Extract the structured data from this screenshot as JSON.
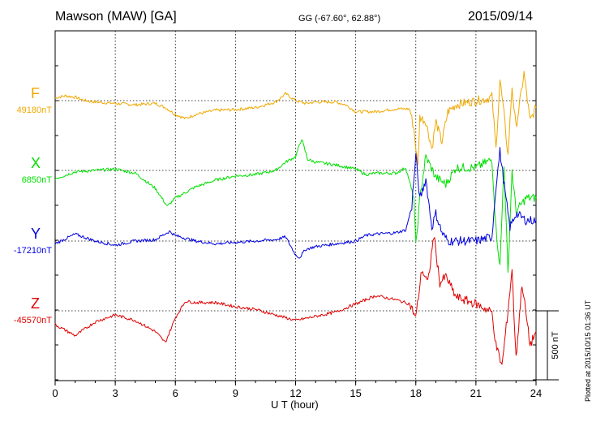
{
  "header": {
    "station": "Mawson (MAW)  [GA]",
    "coords": "GG (-67.60°,  62.88°)",
    "date": "2015/09/14"
  },
  "side_note": "Plotted at 2015/10/15 01:36 UT",
  "colors": {
    "F": "#f0a800",
    "X": "#00e000",
    "Y": "#0000e0",
    "Z": "#e00000",
    "axis": "#000000"
  },
  "chart_data": {
    "type": "line",
    "xlabel": "U T (hour)",
    "xlim": [
      0,
      24
    ],
    "xticks": [
      "0",
      "3",
      "6",
      "9",
      "12",
      "15",
      "18",
      "21",
      "24"
    ],
    "scale_bar": "500 nT",
    "scale_bar_value_nT": 500,
    "series": [
      {
        "name": "F",
        "baseline": "49180nT",
        "points": [
          [
            0,
            20
          ],
          [
            0.5,
            35
          ],
          [
            1,
            25
          ],
          [
            1.5,
            0
          ],
          [
            2,
            -10
          ],
          [
            3,
            -20
          ],
          [
            4,
            -30
          ],
          [
            5,
            -20
          ],
          [
            5.5,
            -50
          ],
          [
            6,
            -100
          ],
          [
            6.5,
            -130
          ],
          [
            7,
            -100
          ],
          [
            8,
            -70
          ],
          [
            9,
            -65
          ],
          [
            10,
            -50
          ],
          [
            11,
            -10
          ],
          [
            11.5,
            50
          ],
          [
            12,
            0
          ],
          [
            12.5,
            -20
          ],
          [
            13,
            -10
          ],
          [
            14,
            -10
          ],
          [
            14.5,
            -30
          ],
          [
            15,
            -80
          ],
          [
            16,
            -80
          ],
          [
            17,
            -60
          ],
          [
            17.7,
            -60
          ],
          [
            17.9,
            -200
          ],
          [
            18.1,
            -480
          ],
          [
            18.2,
            -120
          ],
          [
            18.5,
            -150
          ],
          [
            18.8,
            -350
          ],
          [
            19,
            -150
          ],
          [
            19.3,
            -300
          ],
          [
            19.6,
            -80
          ],
          [
            20,
            -30
          ],
          [
            21,
            0
          ],
          [
            21.5,
            10
          ],
          [
            21.8,
            30
          ],
          [
            22,
            -350
          ],
          [
            22.2,
            150
          ],
          [
            22.4,
            -100
          ],
          [
            22.6,
            -400
          ],
          [
            22.8,
            100
          ],
          [
            23,
            -200
          ],
          [
            23.4,
            200
          ],
          [
            23.7,
            -150
          ],
          [
            24,
            -50
          ]
        ]
      },
      {
        "name": "X",
        "baseline": "6850nT",
        "points": [
          [
            0,
            -60
          ],
          [
            1,
            -10
          ],
          [
            2,
            0
          ],
          [
            3,
            10
          ],
          [
            4,
            -20
          ],
          [
            5,
            -130
          ],
          [
            5.6,
            -260
          ],
          [
            6,
            -200
          ],
          [
            7,
            -120
          ],
          [
            8,
            -70
          ],
          [
            9,
            -40
          ],
          [
            10,
            -30
          ],
          [
            11,
            0
          ],
          [
            11.5,
            60
          ],
          [
            12,
            100
          ],
          [
            12.3,
            230
          ],
          [
            12.6,
            80
          ],
          [
            13,
            60
          ],
          [
            14,
            40
          ],
          [
            15,
            10
          ],
          [
            15.5,
            -30
          ],
          [
            16,
            -20
          ],
          [
            17,
            -20
          ],
          [
            17.5,
            20
          ],
          [
            17.9,
            -200
          ],
          [
            18,
            -550
          ],
          [
            18.2,
            -200
          ],
          [
            18.5,
            100
          ],
          [
            19,
            -50
          ],
          [
            19.5,
            -100
          ],
          [
            20,
            20
          ],
          [
            21,
            20
          ],
          [
            21.8,
            80
          ],
          [
            22,
            -420
          ],
          [
            22.2,
            -700
          ],
          [
            22.4,
            50
          ],
          [
            22.6,
            -750
          ],
          [
            22.8,
            0
          ],
          [
            23,
            -300
          ],
          [
            23.5,
            -200
          ],
          [
            24,
            -200
          ]
        ]
      },
      {
        "name": "Y",
        "baseline": "-17210nT",
        "points": [
          [
            0,
            -20
          ],
          [
            1,
            50
          ],
          [
            2,
            0
          ],
          [
            3,
            -30
          ],
          [
            4,
            0
          ],
          [
            5,
            10
          ],
          [
            5.7,
            70
          ],
          [
            6,
            40
          ],
          [
            7,
            0
          ],
          [
            8,
            -20
          ],
          [
            9,
            -10
          ],
          [
            10,
            0
          ],
          [
            11,
            10
          ],
          [
            11.5,
            30
          ],
          [
            12,
            -100
          ],
          [
            12.2,
            -120
          ],
          [
            12.5,
            -60
          ],
          [
            13,
            -40
          ],
          [
            14,
            -20
          ],
          [
            15,
            0
          ],
          [
            15.5,
            40
          ],
          [
            16,
            50
          ],
          [
            17,
            60
          ],
          [
            17.5,
            80
          ],
          [
            17.8,
            250
          ],
          [
            18,
            620
          ],
          [
            18.2,
            300
          ],
          [
            18.5,
            450
          ],
          [
            18.8,
            100
          ],
          [
            19,
            200
          ],
          [
            19.3,
            60
          ],
          [
            19.6,
            0
          ],
          [
            20,
            0
          ],
          [
            21,
            0
          ],
          [
            21.8,
            30
          ],
          [
            22,
            400
          ],
          [
            22.2,
            650
          ],
          [
            22.5,
            300
          ],
          [
            22.7,
            100
          ],
          [
            23,
            200
          ],
          [
            23.5,
            150
          ],
          [
            24,
            150
          ]
        ]
      },
      {
        "name": "Z",
        "baseline": "-45570nT",
        "points": [
          [
            0,
            -100
          ],
          [
            1,
            -180
          ],
          [
            2,
            -80
          ],
          [
            3,
            -30
          ],
          [
            4,
            -70
          ],
          [
            5,
            -150
          ],
          [
            5.5,
            -230
          ],
          [
            6,
            -50
          ],
          [
            6.5,
            70
          ],
          [
            7,
            60
          ],
          [
            8,
            60
          ],
          [
            9,
            30
          ],
          [
            10,
            10
          ],
          [
            11,
            -30
          ],
          [
            12,
            -70
          ],
          [
            13,
            -40
          ],
          [
            14,
            -10
          ],
          [
            15,
            50
          ],
          [
            16,
            110
          ],
          [
            17,
            80
          ],
          [
            17.7,
            50
          ],
          [
            18,
            -50
          ],
          [
            18.3,
            300
          ],
          [
            18.6,
            200
          ],
          [
            18.9,
            550
          ],
          [
            19.2,
            200
          ],
          [
            19.5,
            250
          ],
          [
            20,
            100
          ],
          [
            21,
            50
          ],
          [
            21.8,
            -10
          ],
          [
            22,
            -250
          ],
          [
            22.3,
            -400
          ],
          [
            22.6,
            0
          ],
          [
            22.8,
            300
          ],
          [
            23,
            -350
          ],
          [
            23.3,
            200
          ],
          [
            23.7,
            -250
          ],
          [
            24,
            -150
          ]
        ]
      }
    ]
  }
}
